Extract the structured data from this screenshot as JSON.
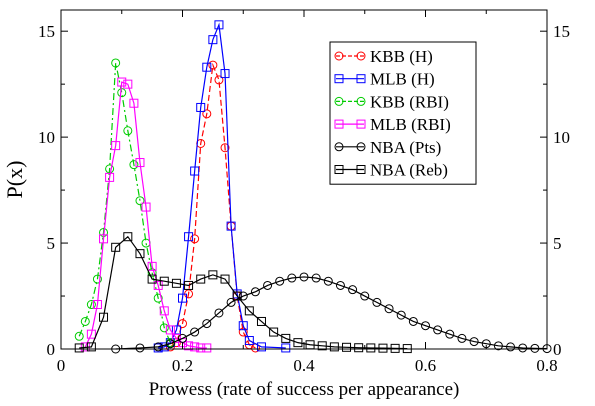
{
  "chart_data": {
    "type": "line",
    "title": "",
    "xlabel": "Prowess (rate of success per appearance)",
    "ylabel": "P(x)",
    "xlim": [
      0,
      0.8
    ],
    "ylim": [
      0,
      16
    ],
    "x_ticks": [
      0,
      0.2,
      0.4,
      0.6,
      0.8
    ],
    "x_tick_labels": [
      "0",
      "0.2",
      "0.4",
      "0.6",
      "0.8"
    ],
    "y_ticks": [
      0,
      5,
      10,
      15
    ],
    "y_tick_labels": [
      "0",
      "5",
      "10",
      "15"
    ],
    "grid": false,
    "legend_position": "top-right",
    "series": [
      {
        "name": "KBB (H)",
        "color": "#ff0000",
        "marker": "circle",
        "dash": "dashed",
        "x": [
          0.18,
          0.19,
          0.2,
          0.21,
          0.22,
          0.23,
          0.24,
          0.25,
          0.26,
          0.27,
          0.28,
          0.29,
          0.3,
          0.31,
          0.32
        ],
        "y": [
          0.1,
          0.3,
          1.2,
          2.6,
          5.2,
          9.7,
          11.1,
          13.4,
          12.7,
          9.5,
          5.8,
          2.5,
          0.8,
          0.2,
          0.05
        ]
      },
      {
        "name": "MLB (H)",
        "color": "#0000ff",
        "marker": "square",
        "dash": "solid",
        "x": [
          0.16,
          0.17,
          0.18,
          0.19,
          0.2,
          0.21,
          0.22,
          0.23,
          0.24,
          0.25,
          0.26,
          0.27,
          0.28,
          0.29,
          0.3,
          0.31,
          0.33,
          0.37
        ],
        "y": [
          0.05,
          0.1,
          0.3,
          0.9,
          2.4,
          5.3,
          8.4,
          11.4,
          13.3,
          14.6,
          15.3,
          13.0,
          5.8,
          2.6,
          1.1,
          0.4,
          0.1,
          0.05
        ]
      },
      {
        "name": "KBB (RBI)",
        "color": "#00cc00",
        "marker": "circle",
        "dash": "dashdot",
        "x": [
          0.03,
          0.04,
          0.05,
          0.06,
          0.07,
          0.08,
          0.09,
          0.1,
          0.11,
          0.12,
          0.13,
          0.14,
          0.15,
          0.16,
          0.17,
          0.18
        ],
        "y": [
          0.6,
          1.3,
          2.1,
          3.3,
          5.5,
          8.5,
          13.5,
          12.1,
          10.3,
          8.7,
          7.0,
          5.0,
          3.6,
          2.4,
          1.0,
          0.3
        ]
      },
      {
        "name": "MLB (RBI)",
        "color": "#ff00ff",
        "marker": "square",
        "dash": "solid",
        "x": [
          0.04,
          0.05,
          0.06,
          0.07,
          0.08,
          0.09,
          0.1,
          0.11,
          0.12,
          0.13,
          0.14,
          0.15,
          0.16,
          0.17,
          0.18,
          0.19,
          0.2,
          0.21,
          0.22,
          0.23,
          0.24
        ],
        "y": [
          0.1,
          0.7,
          2.1,
          5.2,
          8.1,
          9.6,
          12.6,
          12.5,
          11.6,
          8.8,
          6.7,
          3.9,
          3.0,
          1.8,
          0.9,
          0.5,
          0.3,
          0.15,
          0.1,
          0.05,
          0.05
        ]
      },
      {
        "name": "NBA (Pts)",
        "color": "#000000",
        "marker": "circle",
        "dash": "solid",
        "x": [
          0.09,
          0.13,
          0.16,
          0.18,
          0.2,
          0.22,
          0.24,
          0.26,
          0.28,
          0.3,
          0.32,
          0.34,
          0.36,
          0.38,
          0.4,
          0.42,
          0.44,
          0.46,
          0.48,
          0.5,
          0.52,
          0.54,
          0.56,
          0.58,
          0.6,
          0.62,
          0.64,
          0.66,
          0.68,
          0.7,
          0.72,
          0.74,
          0.76,
          0.78,
          0.8
        ],
        "y": [
          0.0,
          0.05,
          0.1,
          0.25,
          0.5,
          0.8,
          1.2,
          1.7,
          2.2,
          2.5,
          2.7,
          3.0,
          3.2,
          3.35,
          3.4,
          3.35,
          3.2,
          3.0,
          2.8,
          2.5,
          2.2,
          1.9,
          1.6,
          1.3,
          1.1,
          0.9,
          0.7,
          0.5,
          0.35,
          0.25,
          0.15,
          0.1,
          0.05,
          0.03,
          0.02
        ]
      },
      {
        "name": "NBA (Reb)",
        "color": "#000000",
        "marker": "square",
        "dash": "solid",
        "x": [
          0.03,
          0.05,
          0.07,
          0.09,
          0.11,
          0.13,
          0.15,
          0.17,
          0.19,
          0.21,
          0.23,
          0.25,
          0.27,
          0.29,
          0.31,
          0.33,
          0.35,
          0.37,
          0.39,
          0.41,
          0.43,
          0.45,
          0.47,
          0.49,
          0.51,
          0.53,
          0.55,
          0.57
        ],
        "y": [
          0.05,
          0.1,
          1.5,
          4.8,
          5.3,
          4.5,
          3.3,
          3.2,
          3.1,
          3.0,
          3.3,
          3.5,
          3.3,
          2.5,
          1.8,
          1.3,
          0.8,
          0.5,
          0.3,
          0.2,
          0.15,
          0.1,
          0.08,
          0.06,
          0.05,
          0.04,
          0.03,
          0.02
        ]
      }
    ]
  }
}
